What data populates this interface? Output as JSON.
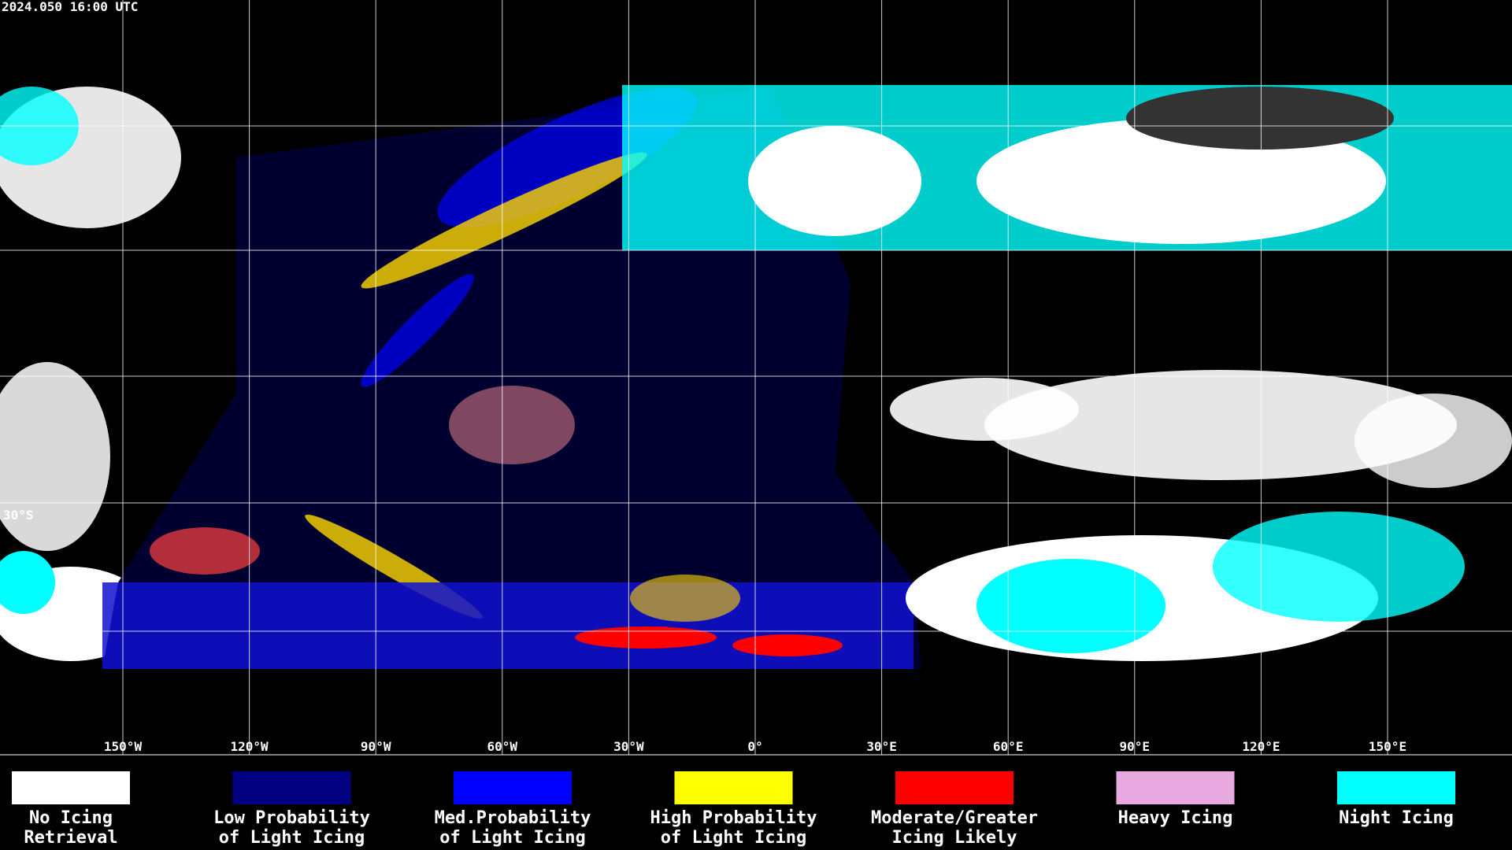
{
  "header": {
    "title": "2024.050 16:00 UTC"
  },
  "map": {
    "longitude_labels": [
      "150°W",
      "120°W",
      "90°W",
      "60°W",
      "30°W",
      "0°",
      "30°E",
      "60°E",
      "90°E",
      "120°E",
      "150°E"
    ],
    "latitude_labels": [
      "30°S"
    ]
  },
  "legend": [
    {
      "color": "#ffffff",
      "lines": [
        "No Icing",
        "Retrieval"
      ]
    },
    {
      "color": "#000080",
      "lines": [
        "Low Probability",
        "of Light Icing"
      ]
    },
    {
      "color": "#0000ff",
      "lines": [
        "Med.Probability",
        "of Light Icing"
      ]
    },
    {
      "color": "#ffff00",
      "lines": [
        "High Probability",
        "of Light Icing"
      ]
    },
    {
      "color": "#ff0000",
      "lines": [
        "Moderate/Greater",
        "Icing Likely"
      ]
    },
    {
      "color": "#e8a8e0",
      "lines": [
        "Heavy Icing"
      ]
    },
    {
      "color": "#00ffff",
      "lines": [
        "Night Icing"
      ]
    }
  ]
}
